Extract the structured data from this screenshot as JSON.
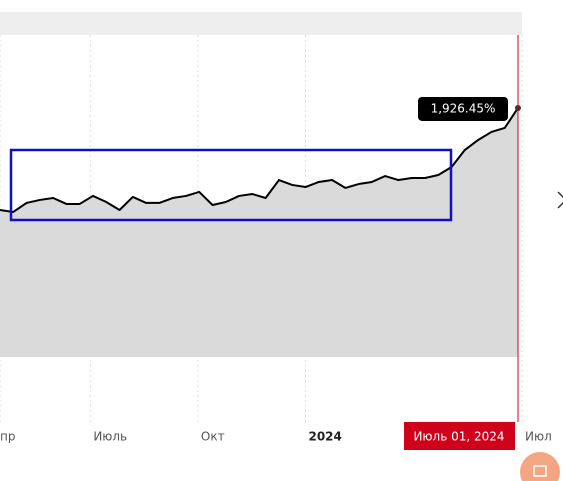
{
  "chart_data": {
    "type": "area",
    "series": [
      {
        "color": "#000000",
        "values": [
          1137,
          1122,
          1192,
          1215,
          1230,
          1184,
          1184,
          1246,
          1199,
          1137,
          1238,
          1192,
          1192,
          1230,
          1246,
          1277,
          1176,
          1199,
          1246,
          1261,
          1230,
          1369,
          1331,
          1315,
          1354,
          1369,
          1308,
          1338,
          1354,
          1400,
          1369,
          1385,
          1385,
          1408,
          1470,
          1602,
          1679,
          1741,
          1772,
          1926.45
        ],
        "value_labels": [
          null,
          null,
          null,
          null,
          null,
          null,
          null,
          null,
          null,
          null,
          null,
          null,
          null,
          null,
          null,
          null,
          null,
          null,
          null,
          null,
          null,
          null,
          null,
          null,
          null,
          null,
          null,
          null,
          null,
          null,
          null,
          null,
          null,
          null,
          null,
          null,
          null,
          null,
          null,
          "1,926.45%"
        ]
      }
    ],
    "xlim": [
      0,
      39
    ],
    "xticks": [
      {
        "value": 0,
        "label": "пр"
      },
      {
        "value": 6.8,
        "label": "Июль"
      },
      {
        "value": 14.9,
        "label": "Окт"
      },
      {
        "value": 23,
        "label": "2024"
      },
      {
        "value": 39.3,
        "label": "Июл"
      }
    ],
    "ylim": [
      0,
      2491
    ],
    "tooltip_date": "Июль 01, 2024",
    "fill_color": "#dadada",
    "cursor_color": "#d0021b"
  }
}
